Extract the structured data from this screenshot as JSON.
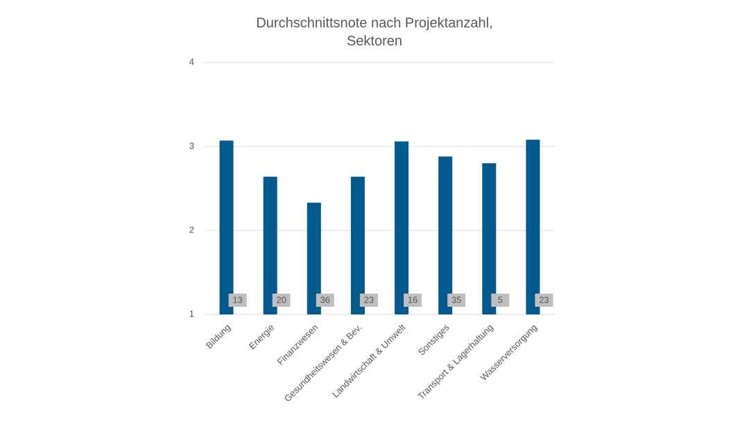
{
  "chart_data": {
    "type": "bar",
    "title": [
      "Durchschnittsnote nach Projektanzahl,",
      "Sektoren"
    ],
    "categories": [
      "Bildung",
      "Energie",
      "Finanzwesen",
      "Gesundheitswesen & Bev.",
      "Landwirtschaft & Umwelt",
      "Sonstiges",
      "Transport & Lagerhaltung",
      "Wasserversorgung"
    ],
    "values": [
      3.07,
      2.64,
      2.33,
      2.64,
      3.06,
      2.88,
      2.8,
      3.08
    ],
    "project_counts": [
      13,
      20,
      36,
      23,
      16,
      35,
      5,
      23
    ],
    "color": "#005a8e",
    "ylim": [
      1,
      4
    ],
    "yticks": [
      1,
      2,
      3,
      4
    ],
    "grid": true
  }
}
